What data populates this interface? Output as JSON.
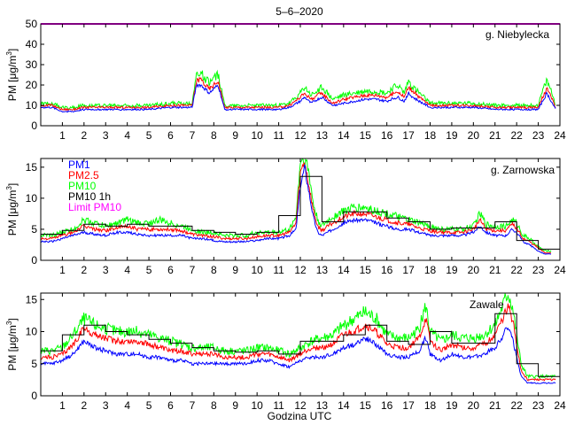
{
  "figure": {
    "title": "5–6–2020",
    "xlabel": "Godzina UTC"
  },
  "chart_data": [
    {
      "type": "line",
      "station": "g. Niebylecka",
      "ylabel": "PM [μg/m³]",
      "ylabel_main": "PM [μg/m",
      "ylabel_sup": "3",
      "ylabel_end": "]",
      "xlim": [
        0,
        24
      ],
      "ylim": [
        0,
        50
      ],
      "yticks": [
        0,
        10,
        20,
        30,
        40,
        50
      ],
      "xticks": [
        1,
        2,
        3,
        4,
        5,
        6,
        7,
        8,
        9,
        10,
        11,
        12,
        13,
        14,
        15,
        16,
        17,
        18,
        19,
        20,
        21,
        22,
        23,
        24
      ],
      "limit_pm10": 50,
      "x": [
        0,
        0.5,
        1,
        1.5,
        2,
        3,
        4,
        5,
        6,
        6.5,
        7,
        7.2,
        7.4,
        7.6,
        7.8,
        8,
        8.2,
        8.5,
        8.7,
        9,
        9.5,
        10,
        10.5,
        11,
        11.5,
        12,
        12.2,
        12.5,
        12.8,
        13,
        13.5,
        14,
        14.5,
        15,
        15.5,
        16,
        16.2,
        16.5,
        16.8,
        17,
        17.2,
        17.5,
        18,
        19,
        20,
        21,
        22,
        22.5,
        23,
        23.2,
        23.4,
        23.6,
        23.8
      ],
      "series": [
        {
          "name": "PM1",
          "color": "#0000ff",
          "values": [
            9,
            9,
            7,
            7,
            8,
            8,
            8,
            8,
            9,
            9,
            9,
            20,
            20,
            18,
            16,
            18,
            20,
            8,
            8,
            8,
            8,
            8,
            8,
            8,
            9,
            12,
            14,
            11,
            13,
            14,
            10,
            11,
            12,
            13,
            13,
            12,
            13,
            14,
            12,
            16,
            14,
            12,
            9,
            9,
            9,
            8,
            8,
            8,
            8,
            12,
            16,
            12,
            8
          ]
        },
        {
          "name": "PM2.5",
          "color": "#ff0000",
          "values": [
            10,
            10,
            8,
            8,
            9,
            9,
            9,
            9,
            10,
            10,
            10,
            22,
            23,
            20,
            18,
            20,
            22,
            9,
            9,
            9,
            9,
            9,
            9,
            9,
            10,
            14,
            16,
            13,
            15,
            16,
            11,
            13,
            14,
            15,
            15,
            14,
            15,
            17,
            14,
            19,
            17,
            14,
            10,
            10,
            10,
            9,
            9,
            9,
            9,
            14,
            18,
            14,
            9
          ]
        },
        {
          "name": "PM10",
          "color": "#00ff00",
          "values": [
            11,
            11,
            9,
            9,
            10,
            10,
            10,
            10,
            11,
            11,
            11,
            25,
            26,
            23,
            21,
            23,
            25,
            10,
            10,
            10,
            10,
            10,
            10,
            10,
            11,
            16,
            19,
            15,
            17,
            19,
            13,
            15,
            16,
            17,
            17,
            16,
            18,
            20,
            16,
            22,
            19,
            16,
            11,
            11,
            11,
            10,
            10,
            10,
            10,
            17,
            22,
            17,
            10
          ]
        }
      ]
    },
    {
      "type": "line",
      "station": "g. Zarnowska",
      "ylabel": "PM [μg/m³]",
      "ylabel_main": "PM [μg/m",
      "ylabel_sup": "3",
      "ylabel_end": "]",
      "xlim": [
        0,
        24
      ],
      "ylim": [
        0,
        16.4
      ],
      "yticks": [
        0,
        5,
        10,
        15
      ],
      "xticks": [
        1,
        2,
        3,
        4,
        5,
        6,
        7,
        8,
        9,
        10,
        11,
        12,
        13,
        14,
        15,
        16,
        17,
        18,
        19,
        20,
        21,
        22,
        23,
        24
      ],
      "legend": [
        "PM1",
        "PM2.5",
        "PM10",
        "PM10 1h",
        "Limit PM10"
      ],
      "x": [
        0,
        0.5,
        1,
        1.5,
        2,
        2.5,
        3,
        3.5,
        4,
        4.5,
        5,
        5.5,
        6,
        6.5,
        7,
        7.5,
        8,
        8.5,
        9,
        9.5,
        10,
        10.5,
        11,
        11.5,
        11.8,
        12,
        12.2,
        12.4,
        12.6,
        12.8,
        13,
        13.5,
        14,
        14.5,
        15,
        15.5,
        16,
        16.5,
        17,
        17.5,
        18,
        18.5,
        19,
        19.5,
        20,
        20.3,
        20.6,
        21,
        21.5,
        21.8,
        22,
        22.3,
        22.6,
        23,
        23.3,
        23.6
      ],
      "series": [
        {
          "name": "PM1",
          "color": "#0000ff",
          "values": [
            3,
            3,
            3.5,
            4,
            4.5,
            4.2,
            4,
            4.5,
            4.5,
            4.2,
            4,
            4,
            4,
            4,
            3.5,
            3.5,
            3.2,
            3,
            3,
            3,
            3.2,
            3.5,
            3.5,
            4,
            5,
            12,
            15,
            11,
            7,
            4.5,
            4,
            5,
            6,
            6.5,
            6.5,
            6,
            5.5,
            5,
            5,
            4.5,
            4,
            4,
            4,
            4,
            4.5,
            5.5,
            4.5,
            4,
            4,
            5,
            4.5,
            3,
            2.5,
            1.5,
            1,
            1
          ]
        },
        {
          "name": "PM2.5",
          "color": "#ff0000",
          "values": [
            3.5,
            3.5,
            4,
            4.5,
            5.5,
            5,
            4.8,
            5.2,
            5.5,
            5,
            5,
            5,
            5,
            4.8,
            4.2,
            4,
            3.8,
            3.5,
            3.5,
            3.5,
            3.8,
            4,
            4,
            4.5,
            6,
            14,
            16,
            12,
            8,
            5.5,
            4.8,
            6,
            7,
            7.5,
            7.5,
            7,
            6.5,
            6,
            5.8,
            5.2,
            4.8,
            4.5,
            4.5,
            4.5,
            5,
            6.5,
            5,
            4.8,
            4.8,
            5.8,
            5.2,
            3.5,
            3,
            2,
            1.2,
            1.2
          ]
        },
        {
          "name": "PM10",
          "color": "#00ff00",
          "values": [
            4,
            4,
            4.5,
            5,
            6.5,
            6,
            5.5,
            6,
            6.5,
            6,
            6,
            6.5,
            6,
            5.5,
            5,
            4.5,
            4.5,
            4,
            4,
            4,
            4.5,
            4.5,
            4.5,
            5,
            7,
            16,
            16.4,
            14,
            9,
            6.5,
            5.5,
            7,
            8,
            8.5,
            8.5,
            8,
            7.5,
            7,
            6.5,
            6,
            5.5,
            5,
            5,
            5,
            5.5,
            7.5,
            5.8,
            5.5,
            5.5,
            6.5,
            6,
            4,
            3.5,
            2.2,
            1.5,
            1.5
          ]
        },
        {
          "name": "PM10 1h",
          "color": "#000000",
          "step": true,
          "x": [
            0,
            1,
            2,
            3,
            4,
            5,
            6,
            7,
            8,
            9,
            10,
            11,
            12,
            13,
            14,
            15,
            16,
            17,
            18,
            19,
            20,
            21,
            22,
            23,
            24
          ],
          "values": [
            4.2,
            4.8,
            5.8,
            5.5,
            5.8,
            5.5,
            5.5,
            4.8,
            4.5,
            4.2,
            4.5,
            7.2,
            13.5,
            6.2,
            7.8,
            7.8,
            6.8,
            6.2,
            5,
            5.2,
            5.2,
            6.2,
            3.2,
            1.8,
            1.8
          ]
        }
      ]
    },
    {
      "type": "line",
      "station": "Zawale",
      "ylabel": "PM [μg/m³]",
      "ylabel_main": "PM [μg/m",
      "ylabel_sup": "3",
      "ylabel_end": "]",
      "xlim": [
        0,
        24
      ],
      "ylim": [
        0,
        16
      ],
      "yticks": [
        0,
        5,
        10,
        15
      ],
      "xticks": [
        1,
        2,
        3,
        4,
        5,
        6,
        7,
        8,
        9,
        10,
        11,
        12,
        13,
        14,
        15,
        16,
        17,
        18,
        19,
        20,
        21,
        22,
        23,
        24
      ],
      "x": [
        0,
        0.5,
        1,
        1.5,
        2,
        2.5,
        3,
        3.5,
        4,
        4.5,
        5,
        5.5,
        6,
        6.5,
        7,
        7.5,
        8,
        8.5,
        9,
        9.5,
        10,
        10.5,
        11,
        11.5,
        12,
        12.5,
        13,
        13.5,
        14,
        14.5,
        15,
        15.5,
        16,
        16.5,
        17,
        17.5,
        17.8,
        18,
        18.5,
        19,
        19.5,
        20,
        20.5,
        21,
        21.3,
        21.6,
        21.8,
        22,
        22.2,
        22.5,
        23,
        23.5,
        23.8
      ],
      "series": [
        {
          "name": "PM1",
          "color": "#0000ff",
          "values": [
            5,
            5,
            5.5,
            6.5,
            8.5,
            7.5,
            7,
            6.5,
            6.5,
            6.5,
            6,
            6,
            5.5,
            5.5,
            5,
            5,
            5,
            5,
            5,
            5,
            5.5,
            5.5,
            5,
            4.5,
            5.5,
            6,
            6,
            6.5,
            7.5,
            8,
            9,
            8,
            6.5,
            6,
            6,
            7,
            9,
            6.5,
            5.5,
            6.5,
            6,
            6,
            6.5,
            7.5,
            9,
            11,
            9,
            6,
            3,
            2,
            2,
            2,
            2
          ]
        },
        {
          "name": "PM2.5",
          "color": "#ff0000",
          "values": [
            6,
            6,
            6.5,
            8,
            10.5,
            9.5,
            9,
            8.5,
            8.5,
            8.5,
            8,
            7.5,
            7,
            7,
            6.5,
            6.5,
            6.5,
            6,
            6,
            6,
            6.5,
            6.5,
            6,
            5.5,
            6.5,
            7.5,
            7.5,
            8,
            9.5,
            10,
            11,
            10,
            8,
            7.5,
            7.5,
            9,
            12,
            8.5,
            7,
            8,
            7.5,
            7.5,
            8,
            9.5,
            11.5,
            14,
            12,
            8,
            4,
            2.5,
            2.5,
            2.5,
            2.5
          ]
        },
        {
          "name": "PM10",
          "color": "#00ff00",
          "values": [
            7,
            7,
            7.5,
            9.5,
            12,
            11,
            10.5,
            10,
            10,
            10,
            9.5,
            9,
            8.5,
            8,
            7.5,
            7.5,
            7.5,
            7,
            7,
            7,
            7.5,
            7.5,
            7,
            6.5,
            7.5,
            8.5,
            9,
            9.5,
            11,
            12,
            13,
            12,
            9.5,
            9,
            9,
            10.5,
            14,
            10,
            8.5,
            9.5,
            9,
            9,
            9.5,
            11,
            13.5,
            16,
            14,
            9.5,
            5,
            3,
            3,
            3,
            3
          ]
        },
        {
          "name": "PM10 1h",
          "color": "#000000",
          "step": true,
          "x": [
            0,
            1,
            2,
            3,
            4,
            5,
            6,
            7,
            8,
            9,
            10,
            11,
            12,
            13,
            14,
            15,
            16,
            17,
            18,
            19,
            20,
            21,
            22,
            23,
            24
          ],
          "values": [
            7,
            9.5,
            11,
            10,
            9.5,
            8.8,
            8.2,
            7.5,
            7,
            6.8,
            7,
            6.5,
            8.5,
            8.5,
            9.5,
            11,
            8.5,
            8,
            10,
            8.2,
            8.2,
            12.8,
            5,
            3,
            3
          ]
        }
      ]
    }
  ]
}
